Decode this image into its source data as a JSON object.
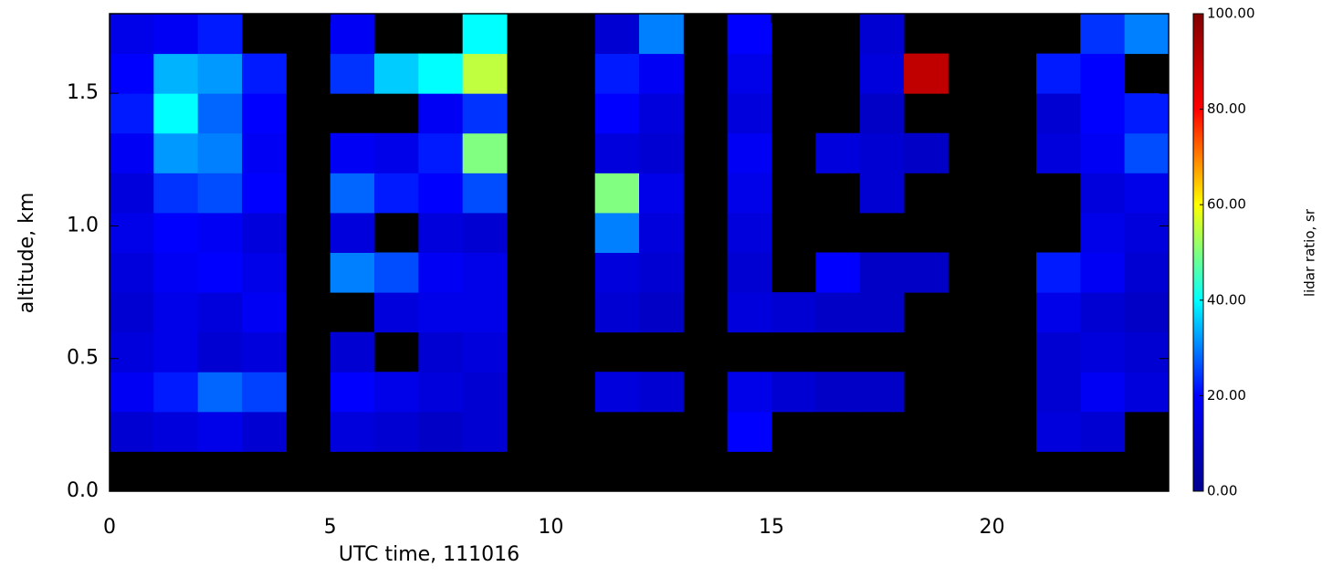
{
  "chart_data": {
    "type": "heatmap",
    "x_label": "UTC time, 111016",
    "y_label": "altitude, km",
    "colorbar_label": "lidar ratio, sr",
    "xbins": [
      0,
      1,
      2,
      3,
      4,
      5,
      6,
      7,
      8,
      9,
      10,
      11,
      12,
      13,
      14,
      15,
      16,
      17,
      18,
      19,
      20,
      21,
      22,
      23,
      24
    ],
    "ybins": [
      0,
      0.15,
      0.3,
      0.45,
      0.6,
      0.75,
      0.9,
      1.05,
      1.2,
      1.35,
      1.5,
      1.65,
      1.8
    ],
    "z": [
      [
        null,
        null,
        null,
        null,
        null,
        null,
        null,
        null,
        null,
        null,
        null,
        null,
        null,
        null,
        null,
        null,
        null,
        null,
        null,
        null,
        null,
        null,
        null,
        null
      ],
      [
        12,
        14,
        16,
        12,
        null,
        14,
        12,
        10,
        12,
        null,
        null,
        null,
        null,
        null,
        20,
        null,
        null,
        null,
        null,
        null,
        null,
        14,
        12,
        null
      ],
      [
        18,
        22,
        28,
        25,
        null,
        20,
        16,
        14,
        12,
        null,
        null,
        14,
        12,
        null,
        16,
        12,
        10,
        10,
        null,
        null,
        null,
        12,
        18,
        14
      ],
      [
        14,
        16,
        12,
        14,
        null,
        12,
        null,
        12,
        14,
        null,
        null,
        null,
        null,
        null,
        null,
        null,
        null,
        null,
        null,
        null,
        null,
        12,
        14,
        12
      ],
      [
        12,
        16,
        14,
        18,
        null,
        null,
        14,
        16,
        16,
        null,
        null,
        12,
        10,
        null,
        14,
        12,
        10,
        10,
        null,
        null,
        null,
        16,
        12,
        10
      ],
      [
        14,
        18,
        20,
        16,
        null,
        30,
        26,
        18,
        16,
        null,
        null,
        14,
        12,
        null,
        12,
        null,
        20,
        10,
        10,
        null,
        null,
        22,
        18,
        12
      ],
      [
        16,
        20,
        18,
        14,
        null,
        14,
        null,
        14,
        12,
        null,
        null,
        30,
        14,
        null,
        14,
        null,
        null,
        null,
        null,
        null,
        null,
        null,
        16,
        14
      ],
      [
        14,
        24,
        26,
        20,
        null,
        28,
        22,
        20,
        26,
        null,
        null,
        50,
        16,
        null,
        16,
        null,
        null,
        12,
        null,
        null,
        null,
        null,
        14,
        16
      ],
      [
        18,
        32,
        30,
        18,
        null,
        18,
        16,
        22,
        50,
        null,
        null,
        14,
        12,
        null,
        18,
        null,
        14,
        12,
        10,
        null,
        null,
        14,
        18,
        26
      ],
      [
        22,
        40,
        28,
        20,
        null,
        null,
        null,
        18,
        24,
        null,
        null,
        20,
        14,
        null,
        14,
        null,
        null,
        10,
        null,
        null,
        null,
        12,
        20,
        22
      ],
      [
        20,
        34,
        32,
        22,
        null,
        24,
        36,
        40,
        55,
        null,
        null,
        22,
        18,
        null,
        16,
        null,
        null,
        14,
        90,
        null,
        null,
        22,
        20,
        null
      ],
      [
        16,
        18,
        22,
        null,
        null,
        18,
        null,
        null,
        40,
        null,
        null,
        12,
        30,
        null,
        20,
        null,
        null,
        12,
        null,
        null,
        null,
        null,
        24,
        30
      ]
    ],
    "xlim": [
      0,
      24
    ],
    "xticks": [
      0,
      5,
      10,
      15,
      20
    ],
    "ylim": [
      0,
      1.8
    ],
    "yticks": [
      {
        "value": 0,
        "label": "0.0"
      },
      0.5,
      {
        "value": 1,
        "label": "1.0"
      },
      1.5
    ],
    "clim": [
      0,
      100
    ],
    "cticks": [
      {
        "value": 0,
        "label": "0.00"
      },
      {
        "value": 20,
        "label": "20.00"
      },
      {
        "value": 40,
        "label": "40.00"
      },
      {
        "value": 60,
        "label": "60.00"
      },
      {
        "value": 80,
        "label": "80.00"
      },
      {
        "value": 100,
        "label": "100.00"
      }
    ],
    "colorscale": [
      "#00008f",
      "#0000ff",
      "#00ffff",
      "#ffff00",
      "#ff0000",
      "#800000"
    ],
    "missing_color": "#000000"
  }
}
